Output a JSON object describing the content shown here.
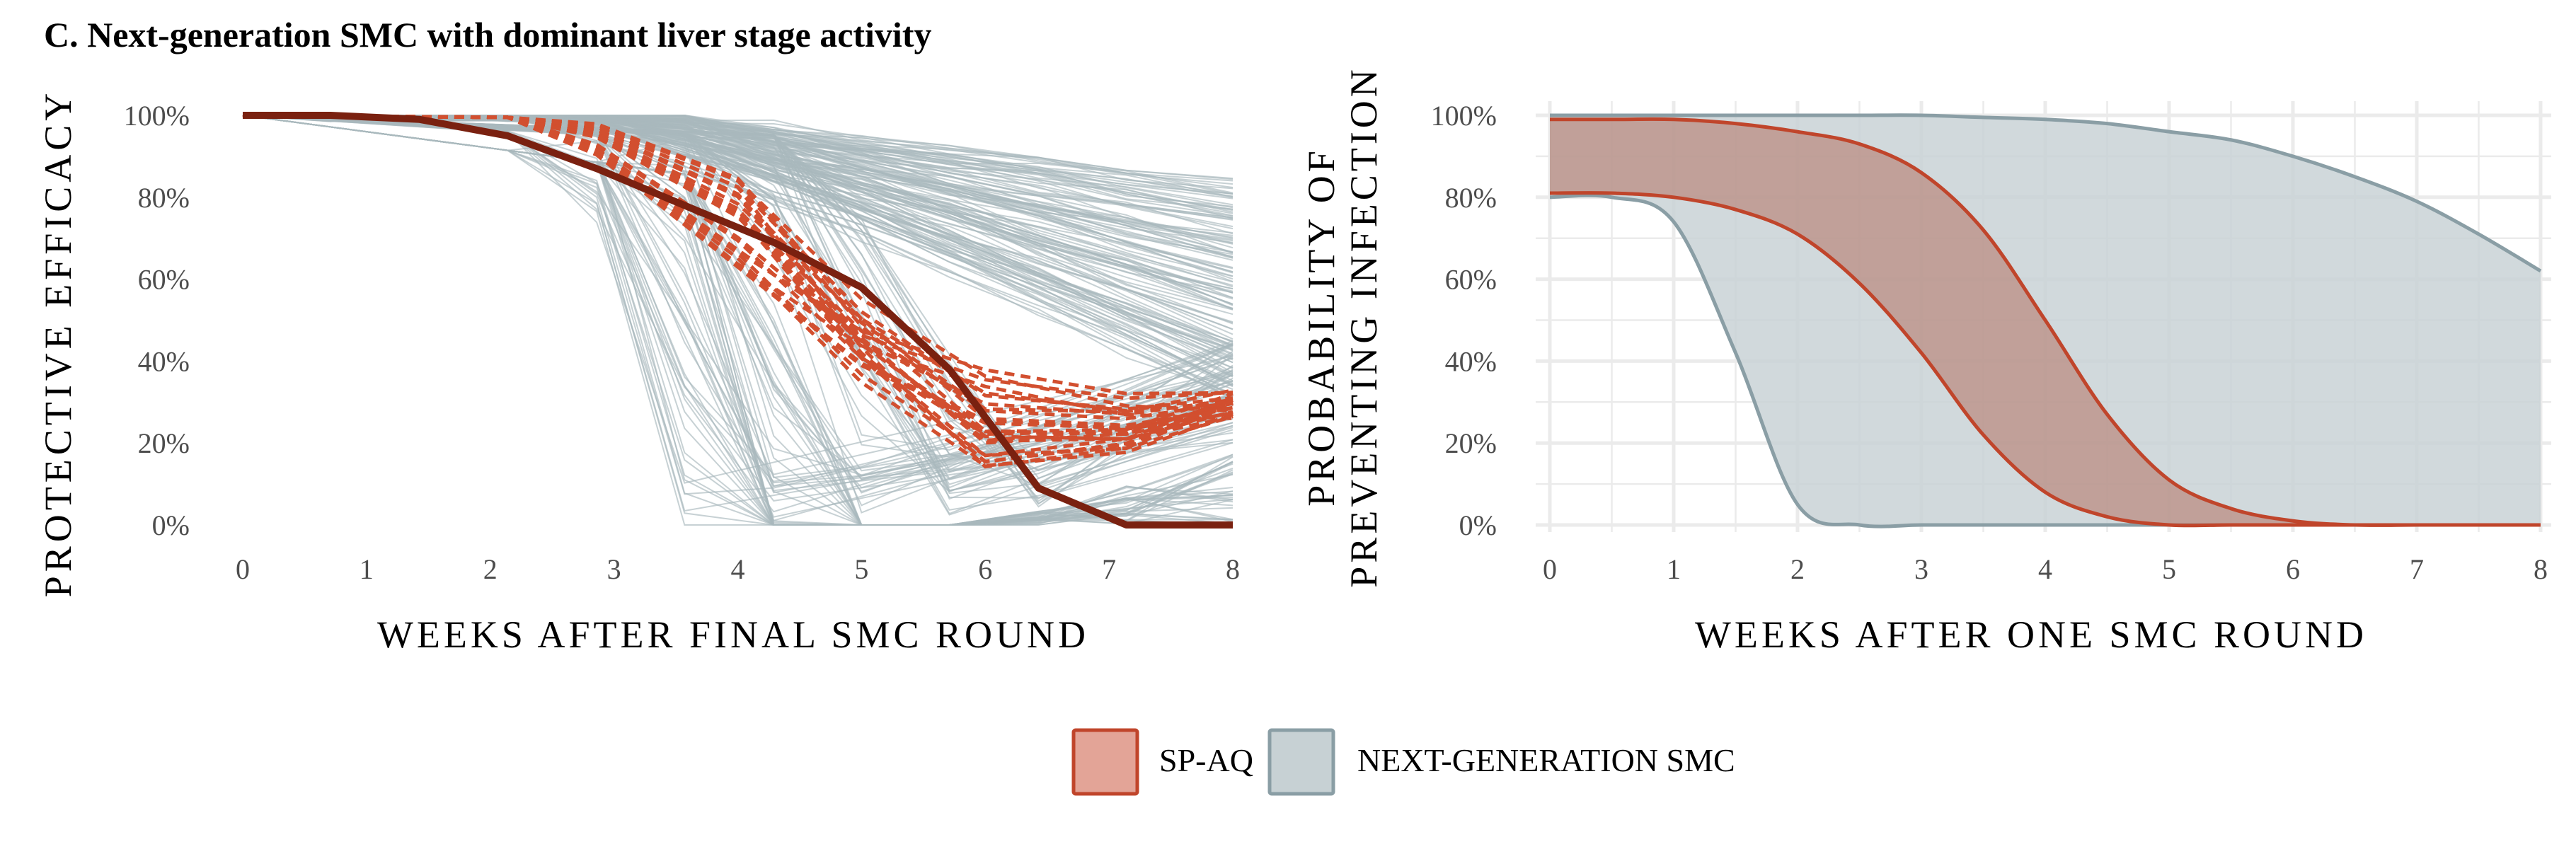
{
  "figure": {
    "title": "C. Next-generation SMC with dominant liver stage activity"
  },
  "colors": {
    "spaq_fill": "#e3a497",
    "spaq_line": "#c0452b",
    "spaq_sim_line": "#d24f2f",
    "spaq_mean_line": "#7a2110",
    "nextgen_fill": "#c7d1d4",
    "nextgen_line": "#8a9ea5",
    "nextgen_sim_line": "#a9b8bd",
    "grid": "#ebebeb",
    "tick_text": "#4d4d4d"
  },
  "legend": {
    "items": [
      {
        "label": "SP-AQ",
        "color_key": "spaq"
      },
      {
        "label": "NEXT-GENERATION SMC",
        "color_key": "nextgen"
      }
    ]
  },
  "chart_data": [
    {
      "type": "line",
      "panel": "left",
      "xlabel": "WEEKS AFTER FINAL SMC ROUND",
      "ylabel": "PROTECTIVE EFFICACY",
      "xlim": [
        0,
        8
      ],
      "ylim": [
        0,
        1
      ],
      "xticks": [
        "0",
        "1",
        "2",
        "3",
        "4",
        "5",
        "6",
        "7",
        "8"
      ],
      "yticks": [
        "0%",
        "20%",
        "40%",
        "60%",
        "80%",
        "100%"
      ],
      "grid": false,
      "series": [
        {
          "group": "SP-AQ mean",
          "style": "solid",
          "x": [
            0,
            0.71,
            1.43,
            2.14,
            2.86,
            3.57,
            4.29,
            5.0,
            5.71,
            6.43,
            7.14,
            8.0
          ],
          "y": [
            1.0,
            1.0,
            0.99,
            0.95,
            0.87,
            0.78,
            0.69,
            0.58,
            0.38,
            0.09,
            0.0,
            0.0
          ]
        }
      ],
      "simulated_trajectories": [
        {
          "group": "SP-AQ",
          "style": "dashed",
          "count": 25,
          "y_at_week_4_range": [
            0.62,
            0.85
          ],
          "y_at_week_6_range": [
            0.12,
            0.38
          ],
          "y_at_week_8_range": [
            0.26,
            0.33
          ]
        },
        {
          "group": "NEXT-GENERATION SMC",
          "style": "solid",
          "count": 220,
          "y_at_week_8_range": [
            0.3,
            0.84
          ],
          "min_value": 0.0
        }
      ]
    },
    {
      "type": "area",
      "panel": "right",
      "xlabel": "WEEKS AFTER ONE SMC ROUND",
      "ylabel": "PROBABILITY OF PREVENTING INFECTION",
      "xlim": [
        0,
        8
      ],
      "ylim": [
        0,
        1
      ],
      "xticks": [
        "0",
        "1",
        "2",
        "3",
        "4",
        "5",
        "6",
        "7",
        "8"
      ],
      "yticks": [
        "0%",
        "20%",
        "40%",
        "60%",
        "80%",
        "100%"
      ],
      "grid": true,
      "x": [
        0,
        0.5,
        1,
        1.5,
        2,
        2.5,
        3,
        3.5,
        4,
        4.5,
        5,
        5.5,
        6,
        6.5,
        7,
        7.5,
        8
      ],
      "series": [
        {
          "name": "SP-AQ",
          "bound": "upper",
          "y": [
            0.99,
            0.99,
            0.99,
            0.98,
            0.96,
            0.93,
            0.86,
            0.72,
            0.5,
            0.27,
            0.11,
            0.04,
            0.01,
            0.0,
            0.0,
            0.0,
            0.0
          ]
        },
        {
          "name": "SP-AQ",
          "bound": "lower",
          "y": [
            0.81,
            0.81,
            0.8,
            0.77,
            0.71,
            0.59,
            0.42,
            0.22,
            0.08,
            0.02,
            0.0,
            0.0,
            0.0,
            0.0,
            0.0,
            0.0,
            0.0
          ]
        },
        {
          "name": "NEXT-GENERATION SMC",
          "bound": "upper",
          "y": [
            1.0,
            1.0,
            1.0,
            1.0,
            1.0,
            1.0,
            1.0,
            0.995,
            0.99,
            0.98,
            0.96,
            0.94,
            0.9,
            0.85,
            0.79,
            0.71,
            0.62
          ]
        },
        {
          "name": "NEXT-GENERATION SMC",
          "bound": "lower",
          "y": [
            0.8,
            0.8,
            0.74,
            0.42,
            0.05,
            0.0,
            0.0,
            0.0,
            0.0,
            0.0,
            0.0,
            0.0,
            0.0,
            0.0,
            0.0,
            0.0,
            0.0
          ]
        }
      ]
    }
  ]
}
